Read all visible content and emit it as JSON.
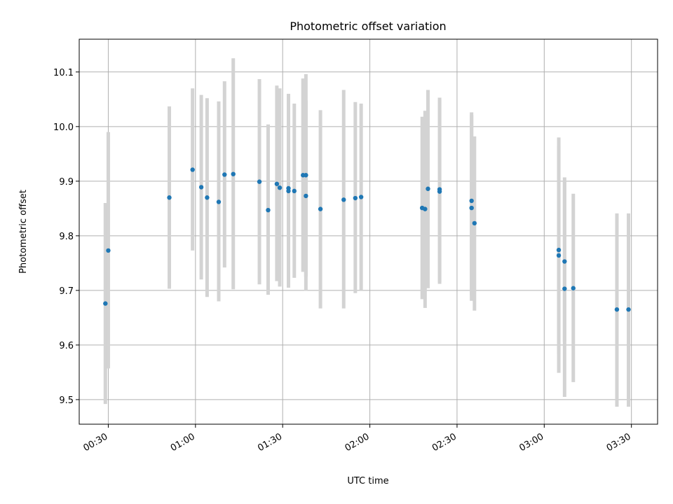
{
  "chart_data": {
    "type": "scatter",
    "title": "Photometric offset variation",
    "xlabel": "UTC time",
    "ylabel": "Photometric offset",
    "xlim": [
      "00:20",
      "03:39"
    ],
    "ylim": [
      9.455,
      10.16
    ],
    "grid": true,
    "x_ticks": [
      "00:30",
      "01:00",
      "01:30",
      "02:00",
      "02:30",
      "03:00",
      "03:30"
    ],
    "y_ticks": [
      "9.5",
      "9.6",
      "9.7",
      "9.8",
      "9.9",
      "10.0",
      "10.1"
    ],
    "colors": {
      "points": "#1f77b4",
      "errorbars": "#d3d3d3",
      "grid": "#b0b0b0"
    },
    "series": [
      {
        "x": [
          "00:29",
          "00:30",
          "00:51",
          "00:59",
          "01:02",
          "01:04",
          "01:08",
          "01:10",
          "01:13",
          "01:22",
          "01:25",
          "01:28",
          "01:29",
          "01:32",
          "01:32",
          "01:34",
          "01:37",
          "01:38",
          "01:38",
          "01:43",
          "01:51",
          "01:55",
          "01:57",
          "02:18",
          "02:19",
          "02:20",
          "02:24",
          "02:24",
          "02:35",
          "02:35",
          "02:36",
          "03:05",
          "03:05",
          "03:07",
          "03:07",
          "03:10",
          "03:25",
          "03:29"
        ],
        "y": [
          9.676,
          9.773,
          9.87,
          9.921,
          9.889,
          9.87,
          9.862,
          9.912,
          9.913,
          9.899,
          9.847,
          9.895,
          9.888,
          9.887,
          9.882,
          9.882,
          9.911,
          9.911,
          9.873,
          9.849,
          9.866,
          9.869,
          9.871,
          9.851,
          9.849,
          9.886,
          9.885,
          9.881,
          9.851,
          9.864,
          9.823,
          9.764,
          9.774,
          9.703,
          9.753,
          9.704,
          9.665,
          9.665
        ],
        "y_low": [
          9.492,
          9.557,
          9.703,
          9.773,
          9.72,
          9.688,
          9.68,
          9.742,
          9.702,
          9.711,
          9.692,
          9.717,
          9.707,
          9.715,
          9.705,
          9.723,
          9.734,
          9.725,
          9.699,
          9.667,
          9.667,
          9.695,
          9.7,
          9.684,
          9.668,
          9.704,
          9.715,
          9.712,
          9.681,
          9.691,
          9.663,
          9.549,
          9.584,
          9.505,
          9.606,
          9.532,
          9.487,
          9.487
        ],
        "y_high": [
          9.86,
          9.99,
          10.037,
          10.07,
          10.058,
          10.052,
          10.046,
          10.083,
          10.125,
          10.087,
          10.004,
          10.075,
          10.07,
          10.06,
          10.06,
          10.042,
          10.088,
          10.096,
          10.048,
          10.03,
          10.067,
          10.045,
          10.042,
          10.018,
          10.029,
          10.067,
          10.053,
          10.05,
          10.021,
          10.026,
          9.982,
          9.98,
          9.965,
          9.9,
          9.907,
          9.877,
          9.841,
          9.841
        ]
      }
    ]
  }
}
